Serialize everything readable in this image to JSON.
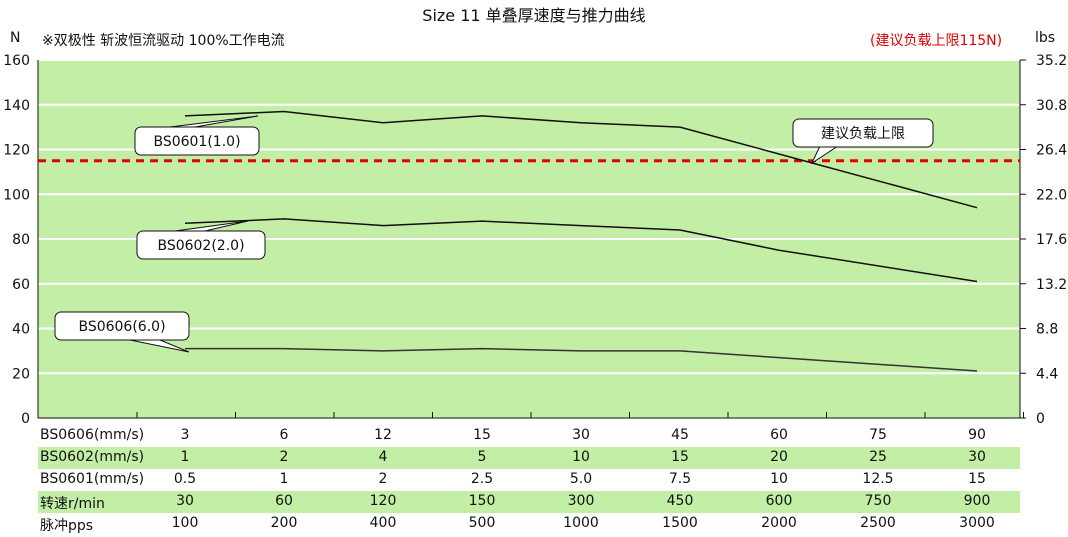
{
  "title": "Size 11 单叠厚速度与推力曲线",
  "left_unit": "N",
  "subtitle": "※双极性 斩波恒流驱动 100%工作电流",
  "right_note": "(建议负载上限115N)",
  "right_unit": "lbs",
  "colors": {
    "plot_bg": "#c3eea6",
    "grid": "#ffffff",
    "line": "#111111",
    "limit": "#e00000",
    "row_bg": "#c3eea6"
  },
  "chart_data": {
    "type": "line",
    "title": "Size 11 单叠厚速度与推力曲线",
    "ylabel": "N",
    "y2label": "lbs",
    "ylim": [
      0,
      160
    ],
    "y2lim": [
      0,
      35.2
    ],
    "y_ticks": [
      "0",
      "20",
      "40",
      "60",
      "80",
      "100",
      "120",
      "140",
      "160"
    ],
    "y2_ticks": [
      "0",
      "4.4",
      "8.8",
      "13.2",
      "17.6",
      "22.0",
      "26.4",
      "30.8",
      "35.2"
    ],
    "x_positions": 9,
    "grid": true,
    "series": [
      {
        "name": "BS0601(1.0)",
        "values": [
          null,
          137,
          132,
          135,
          132,
          130,
          118,
          null,
          94
        ],
        "stroke": "#111111"
      },
      {
        "name": "BS0602(2.0)",
        "values": [
          null,
          89,
          86,
          88,
          86,
          84,
          75,
          null,
          61
        ],
        "stroke": "#111111"
      },
      {
        "name": "BS0606(6.0)",
        "values": [
          31,
          31,
          30,
          31,
          30,
          30,
          27,
          null,
          21
        ],
        "stroke": "#333333"
      }
    ],
    "reference_line": {
      "value": 115,
      "label": "建议负载上限",
      "style": "dashed",
      "color": "#e00000"
    }
  },
  "table": {
    "rows": [
      {
        "label": "BS0606(mm/s)",
        "values": [
          "3",
          "6",
          "12",
          "15",
          "30",
          "45",
          "60",
          "75",
          "90"
        ]
      },
      {
        "label": "BS0602(mm/s)",
        "values": [
          "1",
          "2",
          "4",
          "5",
          "10",
          "15",
          "20",
          "25",
          "30"
        ]
      },
      {
        "label": "BS0601(mm/s)",
        "values": [
          "0.5",
          "1",
          "2",
          "2.5",
          "5.0",
          "7.5",
          "10",
          "12.5",
          "15"
        ]
      },
      {
        "label": "转速r/min",
        "values": [
          "30",
          "60",
          "120",
          "150",
          "300",
          "450",
          "600",
          "750",
          "900"
        ]
      },
      {
        "label": "脉冲pps",
        "values": [
          "100",
          "200",
          "400",
          "500",
          "1000",
          "1500",
          "2000",
          "2500",
          "3000"
        ]
      }
    ]
  }
}
